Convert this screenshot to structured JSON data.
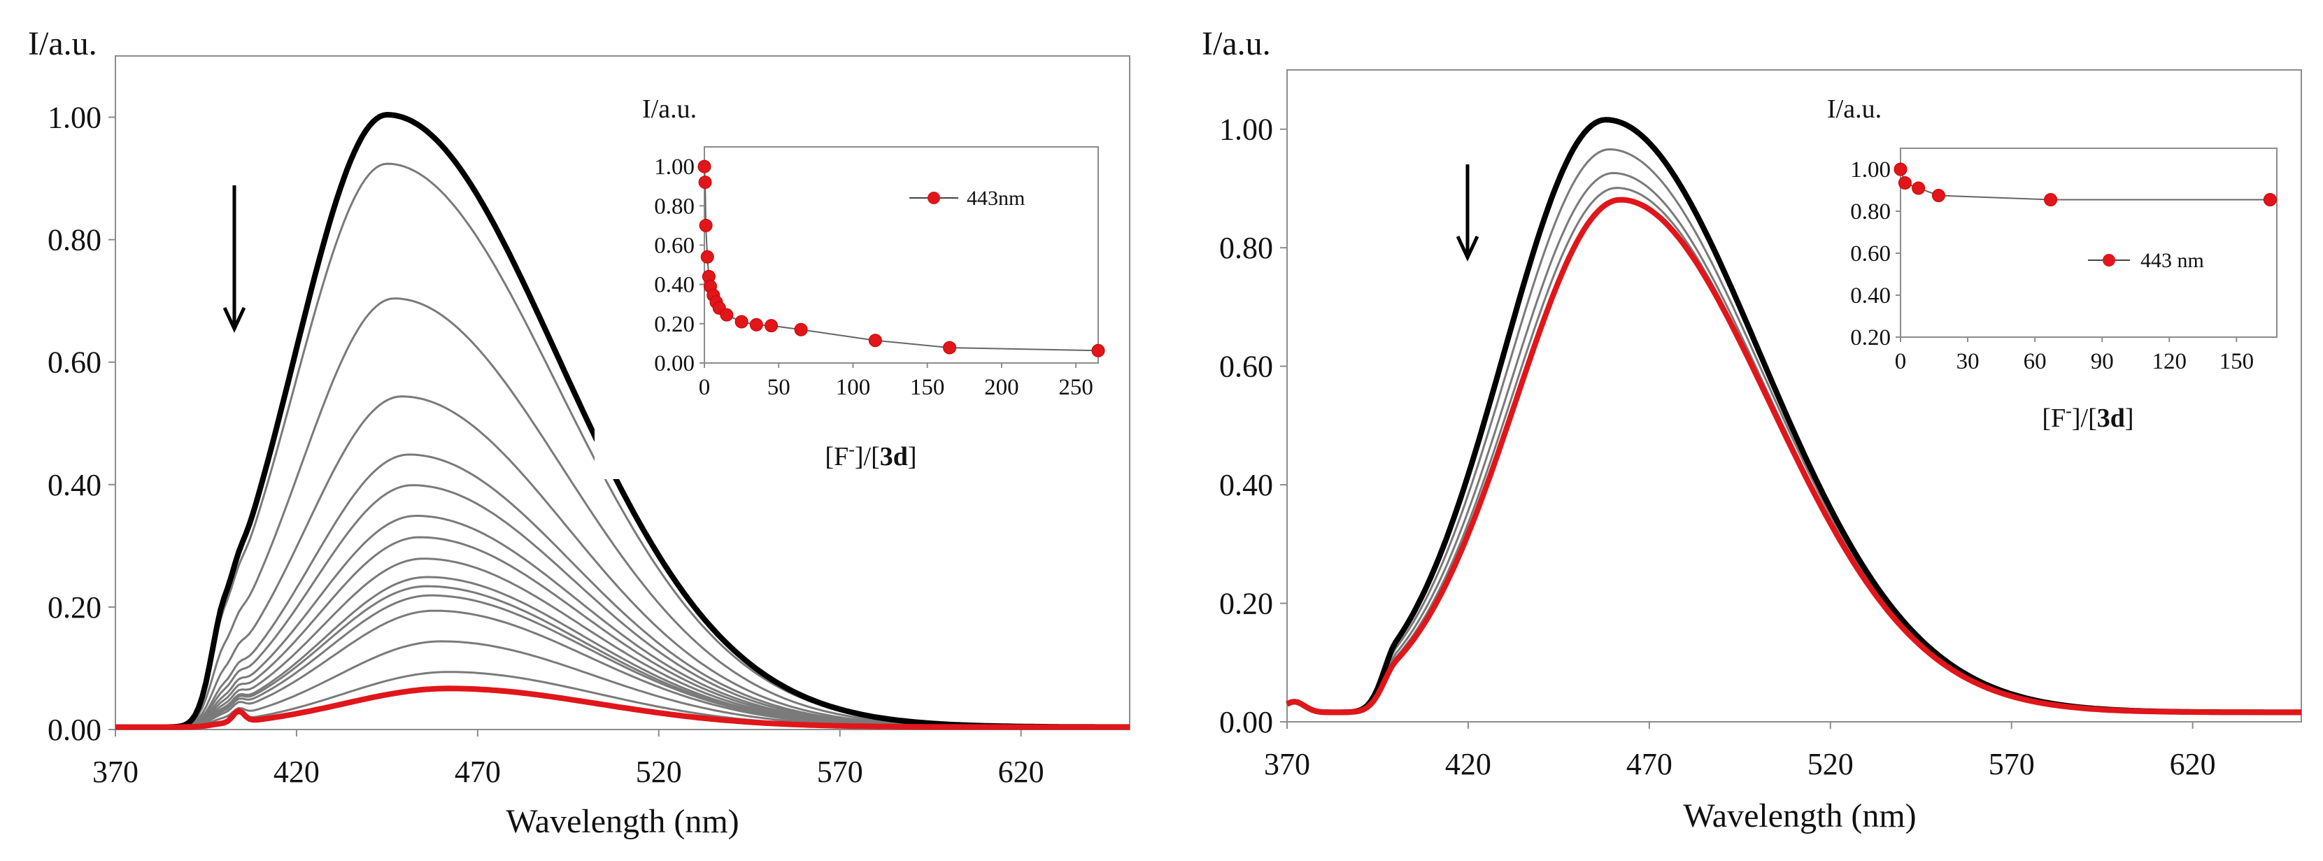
{
  "chart_data": [
    {
      "type": "line",
      "panel": "left",
      "ylabel": "I/a.u.",
      "xlabel": "Wavelength  (nm)",
      "xlim": [
        370,
        650
      ],
      "ylim": [
        0,
        1.1
      ],
      "x_ticks": [
        370,
        420,
        470,
        520,
        570,
        620
      ],
      "x_tick_labels": [
        "370",
        "420",
        "470",
        "520",
        "570",
        "620"
      ],
      "y_ticks": [
        0,
        0.2,
        0.4,
        0.6,
        0.8,
        1.0
      ],
      "y_tick_labels": [
        "0.00",
        "0.20",
        "0.40",
        "0.60",
        "0.80",
        "1.00"
      ],
      "annotation": "downward arrow: fluorescence decreases with added F-",
      "series": [
        {
          "name": "initial",
          "peak_nm": 445,
          "peak": 1.0,
          "color": "#000000",
          "bold": true
        },
        {
          "peak_nm": 445,
          "peak": 0.92,
          "color": "#7a7a7a"
        },
        {
          "peak_nm": 447,
          "peak": 0.7,
          "color": "#7a7a7a"
        },
        {
          "peak_nm": 449,
          "peak": 0.54,
          "color": "#7a7a7a"
        },
        {
          "peak_nm": 451,
          "peak": 0.445,
          "color": "#7a7a7a"
        },
        {
          "peak_nm": 452,
          "peak": 0.395,
          "color": "#7a7a7a"
        },
        {
          "peak_nm": 453,
          "peak": 0.345,
          "color": "#7a7a7a"
        },
        {
          "peak_nm": 454,
          "peak": 0.31,
          "color": "#7a7a7a"
        },
        {
          "peak_nm": 455,
          "peak": 0.275,
          "color": "#7a7a7a"
        },
        {
          "peak_nm": 456,
          "peak": 0.245,
          "color": "#7a7a7a"
        },
        {
          "peak_nm": 456,
          "peak": 0.23,
          "color": "#7a7a7a"
        },
        {
          "peak_nm": 457,
          "peak": 0.215,
          "color": "#7a7a7a"
        },
        {
          "peak_nm": 458,
          "peak": 0.19,
          "color": "#7a7a7a"
        },
        {
          "peak_nm": 460,
          "peak": 0.14,
          "color": "#7a7a7a"
        },
        {
          "peak_nm": 462,
          "peak": 0.09,
          "color": "#7a7a7a"
        },
        {
          "name": "final",
          "peak_nm": 462,
          "peak": 0.063,
          "color": "#e0161a",
          "bold": true
        }
      ],
      "inset": {
        "type": "scatter",
        "ylabel": "I/a.u.",
        "xlabel_parts": [
          "[F",
          "-",
          "]/[",
          "3d",
          "]"
        ],
        "xlim": [
          0,
          265
        ],
        "ylim": [
          0,
          1.1
        ],
        "x_ticks": [
          0,
          50,
          100,
          150,
          200,
          250
        ],
        "x_tick_labels": [
          "0",
          "50",
          "100",
          "150",
          "200",
          "250"
        ],
        "y_ticks": [
          0,
          0.2,
          0.4,
          0.6,
          0.8,
          1.0
        ],
        "y_tick_labels": [
          "0.00",
          "0.20",
          "0.40",
          "0.60",
          "0.80",
          "1.00"
        ],
        "legend": "443nm",
        "points": [
          [
            0,
            1.0
          ],
          [
            0.5,
            0.92
          ],
          [
            1,
            0.7
          ],
          [
            2,
            0.54
          ],
          [
            3,
            0.44
          ],
          [
            4,
            0.39
          ],
          [
            6,
            0.345
          ],
          [
            8,
            0.31
          ],
          [
            10,
            0.28
          ],
          [
            15,
            0.245
          ],
          [
            25,
            0.21
          ],
          [
            35,
            0.195
          ],
          [
            45,
            0.19
          ],
          [
            65,
            0.17
          ],
          [
            115,
            0.115
          ],
          [
            165,
            0.078
          ],
          [
            265,
            0.063
          ]
        ],
        "point_color": "#e0161a"
      }
    },
    {
      "type": "line",
      "panel": "right",
      "ylabel": "I/a.u.",
      "xlabel": "Wavelength  (nm)",
      "xlim": [
        370,
        650
      ],
      "ylim": [
        0,
        1.1
      ],
      "x_ticks": [
        370,
        420,
        470,
        520,
        570,
        620
      ],
      "x_tick_labels": [
        "370",
        "420",
        "470",
        "520",
        "570",
        "620"
      ],
      "y_ticks": [
        0,
        0.2,
        0.4,
        0.6,
        0.8,
        1.0
      ],
      "y_tick_labels": [
        "0.00",
        "0.20",
        "0.40",
        "0.60",
        "0.80",
        "1.00"
      ],
      "annotation": "downward arrow: slight fluorescence decrease",
      "series": [
        {
          "name": "initial",
          "peak_nm": 458,
          "peak": 1.0,
          "color": "#000000",
          "bold": true
        },
        {
          "peak_nm": 459,
          "peak": 0.95,
          "color": "#7a7a7a"
        },
        {
          "peak_nm": 460,
          "peak": 0.91,
          "color": "#7a7a7a"
        },
        {
          "peak_nm": 461,
          "peak": 0.885,
          "color": "#7a7a7a"
        },
        {
          "name": "final",
          "peak_nm": 462,
          "peak": 0.865,
          "color": "#e0161a",
          "bold": true
        }
      ],
      "inset": {
        "type": "scatter",
        "ylabel": "I/a.u.",
        "xlabel_parts": [
          "[F",
          "-",
          "]/[",
          "3d",
          "]"
        ],
        "xlim": [
          0,
          168
        ],
        "ylim": [
          0.2,
          1.1
        ],
        "x_ticks": [
          0,
          30,
          60,
          90,
          120,
          150
        ],
        "x_tick_labels": [
          "0",
          "30",
          "60",
          "90",
          "120",
          "150"
        ],
        "y_ticks": [
          0.2,
          0.4,
          0.6,
          0.8,
          1.0
        ],
        "y_tick_labels": [
          "0.20",
          "0.40",
          "0.60",
          "0.80",
          "1.00"
        ],
        "legend": "443 nm",
        "points": [
          [
            0,
            1.0
          ],
          [
            2,
            0.935
          ],
          [
            8,
            0.91
          ],
          [
            17,
            0.875
          ],
          [
            67,
            0.855
          ],
          [
            165,
            0.855
          ]
        ],
        "point_color": "#e0161a"
      }
    }
  ]
}
